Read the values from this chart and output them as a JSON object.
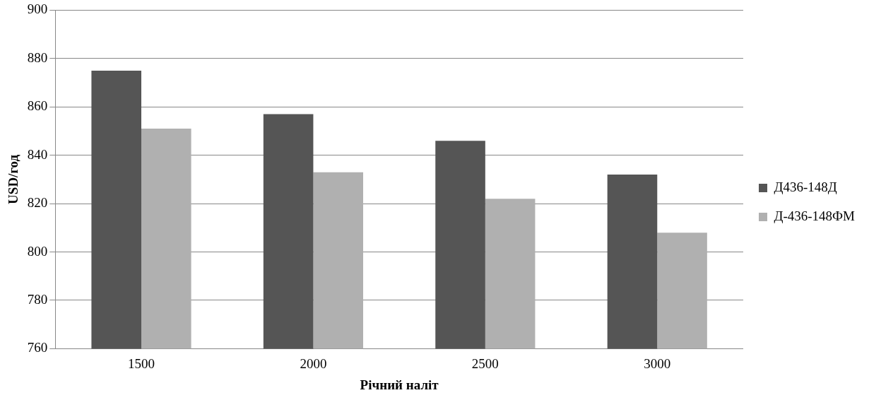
{
  "chart_data": {
    "type": "bar",
    "xlabel": "Річний наліт",
    "ylabel": "USD/год",
    "categories": [
      "1500",
      "2000",
      "2500",
      "3000"
    ],
    "series": [
      {
        "name": "Д436-148Д",
        "color": "#555555",
        "values": [
          875,
          857,
          846,
          832
        ]
      },
      {
        "name": "Д-436-148ФМ",
        "color": "#b0b0b0",
        "values": [
          851,
          833,
          822,
          808
        ]
      }
    ],
    "ylim": [
      760,
      900
    ],
    "yticks": [
      760,
      780,
      800,
      820,
      840,
      860,
      880,
      900
    ],
    "grid": "y",
    "legend": "right"
  }
}
